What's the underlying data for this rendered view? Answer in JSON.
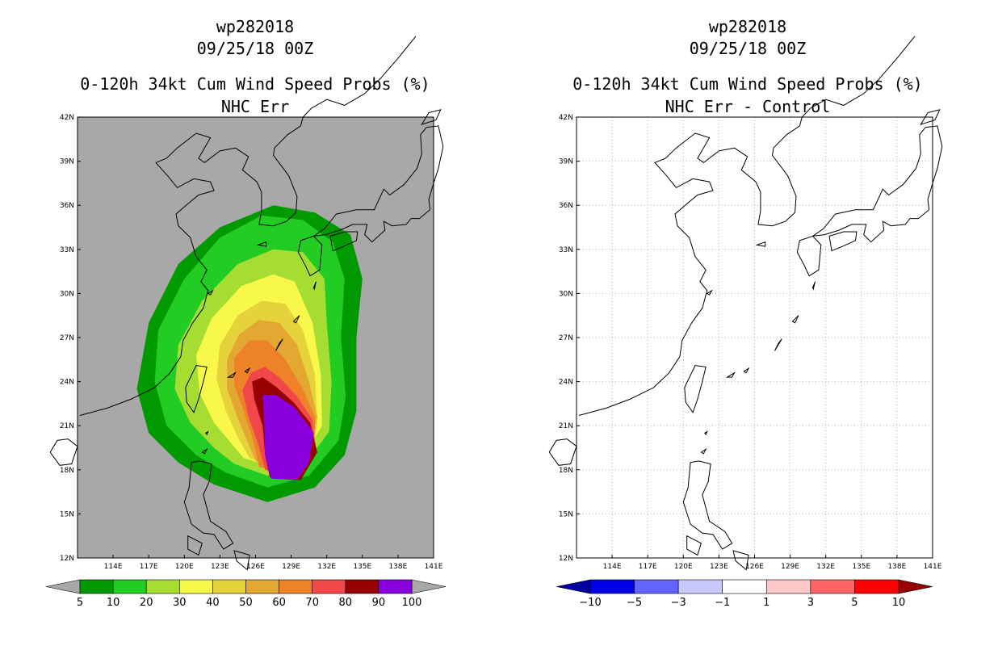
{
  "panels": [
    {
      "id": "left",
      "title_line1": "wp282018",
      "title_line2": "09/25/18 00Z",
      "title_line3": "0-120h 34kt Cum Wind Speed Probs (%)",
      "title_line4": "NHC Err",
      "map_background": "#a8a8a8"
    },
    {
      "id": "right",
      "title_line1": "wp282018",
      "title_line2": "09/25/18 00Z",
      "title_line3": "0-120h 34kt Cum Wind Speed Probs (%)",
      "title_line4": "NHC Err - Control",
      "map_background": "#ffffff"
    }
  ],
  "axes": {
    "lat_labels": [
      "42N",
      "39N",
      "36N",
      "33N",
      "30N",
      "27N",
      "24N",
      "21N",
      "18N",
      "15N",
      "12N"
    ],
    "lon_labels": [
      "114E",
      "117E",
      "120E",
      "123E",
      "126E",
      "129E",
      "132E",
      "135E",
      "138E",
      "141E"
    ]
  },
  "legends": {
    "left": {
      "labels": [
        "5",
        "10",
        "20",
        "30",
        "40",
        "50",
        "60",
        "70",
        "80",
        "90",
        "100"
      ],
      "colors": [
        "#009a00",
        "#22cc22",
        "#a6dd33",
        "#f8f84a",
        "#e6d23a",
        "#e2a832",
        "#ee8228",
        "#f04848",
        "#960000",
        "#8a00dc"
      ],
      "end_color": "#a8a8a8"
    },
    "right": {
      "labels": [
        "-10",
        "-5",
        "-3",
        "-1",
        "1",
        "3",
        "5",
        "10"
      ],
      "colors": [
        "#0000e6",
        "#6464ff",
        "#c8c8ff",
        "#ffffff",
        "#ffc8c8",
        "#ff6464",
        "#ff0000"
      ],
      "end_left_color": "#0000a0",
      "end_right_color": "#960000"
    }
  },
  "chart_data": [
    {
      "type": "heatmap",
      "title": "0-120h 34kt Cum Wind Speed Probs (%) NHC Err",
      "storm": "wp282018",
      "valid": "09/25/18 00Z",
      "units": "%",
      "lat_range": [
        12,
        42
      ],
      "lon_range": [
        111,
        141
      ],
      "contour_levels": [
        5,
        10,
        20,
        30,
        40,
        50,
        60,
        70,
        80,
        90,
        100
      ],
      "probability_region_lonlat": {
        "5": [
          [
            122.5,
            17
          ],
          [
            127,
            15.8
          ],
          [
            131,
            16.8
          ],
          [
            133.5,
            19
          ],
          [
            134.5,
            22
          ],
          [
            134.5,
            27
          ],
          [
            135,
            31
          ],
          [
            134,
            34
          ],
          [
            131,
            35.5
          ],
          [
            127.5,
            36
          ],
          [
            123,
            34.5
          ],
          [
            119.5,
            32
          ],
          [
            117,
            28
          ],
          [
            116,
            23.5
          ],
          [
            117,
            20.5
          ],
          [
            119.5,
            18.5
          ]
        ],
        "10": [
          [
            123.5,
            17.8
          ],
          [
            127,
            16.8
          ],
          [
            130.5,
            17.6
          ],
          [
            133,
            20
          ],
          [
            133.6,
            23
          ],
          [
            133.2,
            27
          ],
          [
            133.5,
            31
          ],
          [
            132.5,
            33.5
          ],
          [
            130,
            35
          ],
          [
            126.5,
            35.3
          ],
          [
            123,
            33.8
          ],
          [
            120,
            31
          ],
          [
            117.8,
            27.5
          ],
          [
            117.5,
            24
          ],
          [
            118.5,
            21
          ],
          [
            121,
            19
          ]
        ],
        "20": [
          [
            124.2,
            18.4
          ],
          [
            127,
            17.6
          ],
          [
            130,
            18.2
          ],
          [
            132.2,
            20.6
          ],
          [
            132.4,
            24
          ],
          [
            132,
            28
          ],
          [
            131.8,
            31
          ],
          [
            130,
            32.8
          ],
          [
            127.5,
            33
          ],
          [
            124.5,
            32
          ],
          [
            121.5,
            29.5
          ],
          [
            119.5,
            26.5
          ],
          [
            119.2,
            23.5
          ],
          [
            120.5,
            21.2
          ],
          [
            122.5,
            19.5
          ]
        ],
        "30": [
          [
            125,
            18.8
          ],
          [
            127.5,
            18.2
          ],
          [
            130,
            18.8
          ],
          [
            131.6,
            21
          ],
          [
            131.5,
            24.5
          ],
          [
            130.8,
            28
          ],
          [
            129.3,
            30.8
          ],
          [
            127.5,
            31.3
          ],
          [
            124.8,
            30.5
          ],
          [
            122.3,
            28.3
          ],
          [
            121,
            25.8
          ],
          [
            121.3,
            23.2
          ],
          [
            122.5,
            21.2
          ]
        ],
        "40": [
          [
            125.5,
            18.8
          ],
          [
            128,
            18.2
          ],
          [
            130.5,
            19.2
          ],
          [
            131.2,
            21.5
          ],
          [
            131,
            24.5
          ],
          [
            130,
            27.5
          ],
          [
            128.5,
            29.3
          ],
          [
            126.5,
            29.5
          ],
          [
            124.5,
            28.5
          ],
          [
            123,
            26.5
          ],
          [
            122.7,
            24.2
          ],
          [
            123.5,
            22
          ],
          [
            124.5,
            20.2
          ]
        ],
        "50": [
          [
            126,
            18.6
          ],
          [
            128.5,
            18
          ],
          [
            130.8,
            19.2
          ],
          [
            131.2,
            21.6
          ],
          [
            130.5,
            24
          ],
          [
            129.5,
            26.5
          ],
          [
            128,
            28
          ],
          [
            126.3,
            28.2
          ],
          [
            124.6,
            27.2
          ],
          [
            123.6,
            25.5
          ],
          [
            123.6,
            23.5
          ],
          [
            124.5,
            21.5
          ]
        ],
        "60": [
          [
            126.3,
            18.2
          ],
          [
            128.5,
            17.8
          ],
          [
            131,
            19.2
          ],
          [
            131,
            21.6
          ],
          [
            130,
            23.5
          ],
          [
            128.5,
            25.5
          ],
          [
            127,
            26.8
          ],
          [
            125.5,
            26.8
          ],
          [
            124.2,
            25.6
          ],
          [
            124.2,
            23.8
          ],
          [
            125,
            22
          ],
          [
            125.8,
            20
          ]
        ],
        "70": [
          [
            126.8,
            18
          ],
          [
            129,
            17.5
          ],
          [
            131,
            19.2
          ],
          [
            130.8,
            21.4
          ],
          [
            129.5,
            23
          ],
          [
            128,
            24.3
          ],
          [
            126.8,
            25
          ],
          [
            125.6,
            24.6
          ],
          [
            124.9,
            23.4
          ],
          [
            125.4,
            21.6
          ],
          [
            126.2,
            19.8
          ]
        ],
        "80": [
          [
            127.2,
            17.5
          ],
          [
            129.8,
            17.3
          ],
          [
            131.2,
            19.2
          ],
          [
            130.6,
            21.2
          ],
          [
            129.2,
            22.6
          ],
          [
            127.8,
            23.6
          ],
          [
            126.6,
            24.3
          ],
          [
            125.7,
            24
          ],
          [
            125.9,
            22.8
          ],
          [
            126.6,
            21
          ],
          [
            126.8,
            19
          ]
        ],
        "90": [
          [
            127.3,
            17.4
          ],
          [
            129.5,
            17.3
          ],
          [
            130.5,
            18.5
          ],
          [
            130.9,
            20.5
          ],
          [
            130.3,
            21.2
          ],
          [
            129.2,
            22.3
          ],
          [
            127.7,
            23.1
          ],
          [
            126.6,
            23.1
          ],
          [
            126.7,
            21.5
          ],
          [
            126.8,
            19
          ]
        ]
      }
    },
    {
      "type": "heatmap",
      "title": "0-120h 34kt Cum Wind Speed Probs (%) NHC Err - Control",
      "storm": "wp282018",
      "valid": "09/25/18 00Z",
      "units": "%",
      "lat_range": [
        12,
        42
      ],
      "lon_range": [
        111,
        141
      ],
      "contour_levels": [
        -10,
        -5,
        -3,
        -1,
        1,
        3,
        5,
        10
      ],
      "note": "All differences between -1 and 1 (blank field)"
    }
  ]
}
